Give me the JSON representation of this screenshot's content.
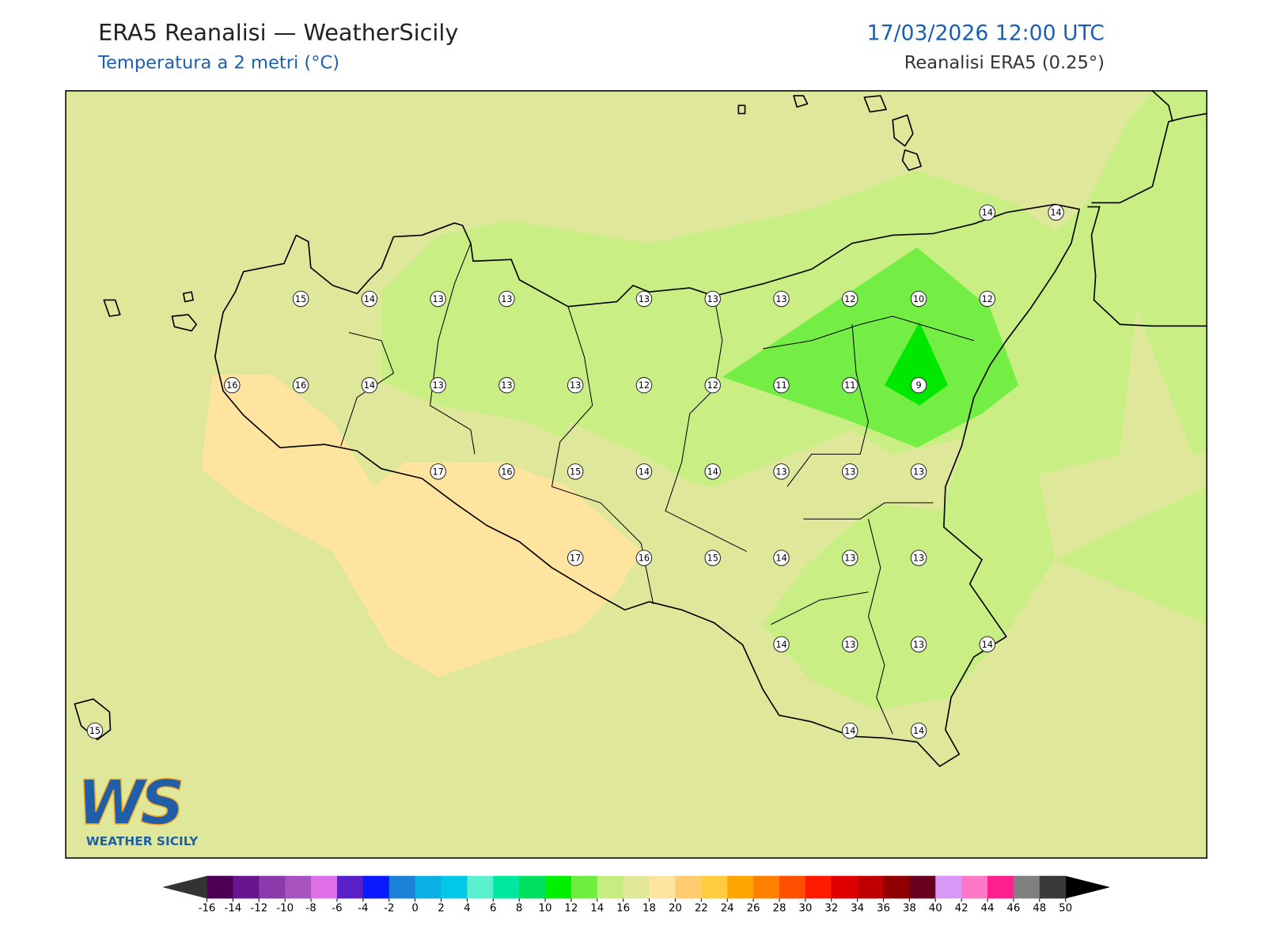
{
  "header": {
    "title": "ERA5 Reanalisi — WeatherSicily",
    "subtitle": "Temperatura a 2 metri (°C)",
    "datetime": "17/03/2026 12:00 UTC",
    "source": "Reanalisi ERA5 (0.25°)"
  },
  "station_values": [
    14,
    14,
    15,
    14,
    13,
    13,
    13,
    13,
    13,
    12,
    10,
    12,
    16,
    16,
    14,
    13,
    13,
    13,
    12,
    12,
    11,
    11,
    9,
    17,
    16,
    15,
    14,
    14,
    13,
    13,
    13,
    17,
    16,
    15,
    14,
    13,
    13,
    14,
    13,
    13,
    14,
    15,
    14,
    14
  ],
  "colorbar": {
    "ticks": [
      -16,
      -14,
      -12,
      -10,
      -8,
      -6,
      -4,
      -2,
      0,
      2,
      4,
      6,
      8,
      10,
      12,
      14,
      16,
      18,
      20,
      22,
      24,
      26,
      28,
      30,
      32,
      34,
      36,
      38,
      40,
      42,
      44,
      46,
      48,
      50
    ],
    "colors": [
      "#4b0055",
      "#6a1590",
      "#8a3aaa",
      "#a752be",
      "#e070e8",
      "#5a20c8",
      "#0a1aff",
      "#1a80d8",
      "#0ab0e4",
      "#00c8e6",
      "#5af0d0",
      "#00e8a0",
      "#00e060",
      "#00f000",
      "#70ee40",
      "#c4ee80",
      "#e0e898",
      "#ffe4a0",
      "#ffcc70",
      "#ffcc40",
      "#ffa500",
      "#ff8000",
      "#ff5000",
      "#ff1a00",
      "#e00000",
      "#c00000",
      "#900000",
      "#6a0020",
      "#d898f8",
      "#ff78c8",
      "#ff2090",
      "#808080",
      "#3a3a3a"
    ],
    "under_color": "#333333",
    "over_color": "#000000"
  },
  "logo": {
    "mark": "WS",
    "name": "WEATHER SICILY"
  }
}
